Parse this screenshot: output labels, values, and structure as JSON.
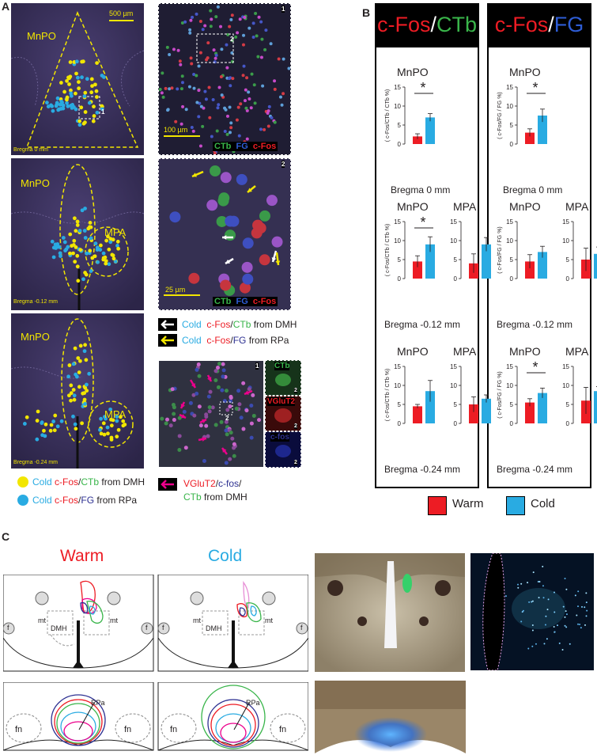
{
  "panels": {
    "a": "A",
    "b": "B",
    "c": "C"
  },
  "panel_a": {
    "scale_500": "500 µm",
    "scale_100": "100 µm",
    "scale_25": "25 µm",
    "slices": [
      {
        "region": "MnPO",
        "bregma": "Bregma 0 mm",
        "inset": "1"
      },
      {
        "region": "MnPO",
        "region2": "MPA",
        "bregma": "Bregma -0.12 mm"
      },
      {
        "region": "MnPO",
        "region2": "MPA",
        "bregma": "Bregma -0.24 mm"
      }
    ],
    "channels": {
      "ctb": "CTb",
      "fg": "FG",
      "cfos": "c-Fos",
      "vglut2": "VGluT2",
      "cfos_lower": "c-fos"
    },
    "inset_nums": {
      "one": "1",
      "two": "2"
    },
    "arrow_legend": [
      {
        "cold": "Cold",
        "a": "c-Fos",
        "slash": "/",
        "b": "CTb",
        "from": "from DMH"
      },
      {
        "cold": "Cold",
        "a": "c-Fos",
        "slash": "/",
        "b": "FG",
        "from": "from RPa"
      }
    ],
    "magenta_legend": {
      "l1a": "VGluT2",
      "l1b": "/",
      "l1c": "c-fos",
      "l1d": "/",
      "l2a": "CTb",
      "l2b": "from DMH"
    },
    "dot_legend": [
      {
        "cold": "Cold",
        "a": "c-Fos",
        "slash": "/",
        "b": "CTb",
        "from": "from DMH",
        "color": "#f2e600"
      },
      {
        "cold": "Cold",
        "a": "c-Fos",
        "slash": "/",
        "b": "FG",
        "from": "from RPa",
        "color": "#29abe2"
      }
    ]
  },
  "panel_b": {
    "header_left": {
      "a": "c-Fos",
      "slash": "/",
      "b": "CTb"
    },
    "header_right": {
      "a": "c-Fos",
      "slash": "/",
      "b": "FG"
    },
    "ylabel_ctb": "( c-Fos/CTb / CTb %)",
    "ylabel_fg": "( c-Fos/FG / FG %)",
    "legend": {
      "warm": "Warm",
      "cold": "Cold",
      "warm_color": "#ed1c24",
      "cold_color": "#29abe2"
    },
    "bregmas": [
      "Bregma 0 mm",
      "Bregma -0.12 mm",
      "Bregma -0.24 mm"
    ],
    "star": "*"
  },
  "chart_data": [
    {
      "type": "bar",
      "title": "MnPO",
      "xlabel": "Bregma 0 mm",
      "ylabel": "c-Fos/CTb / CTb %",
      "ylim": [
        0,
        15
      ],
      "categories": [
        "Warm",
        "Cold"
      ],
      "values": [
        2,
        7
      ],
      "errors": [
        0.7,
        1.0
      ],
      "significant": true
    },
    {
      "type": "bar",
      "title": "MnPO",
      "xlabel": "Bregma 0 mm",
      "ylabel": "c-Fos/FG / FG %",
      "ylim": [
        0,
        15
      ],
      "categories": [
        "Warm",
        "Cold"
      ],
      "values": [
        3,
        7.5
      ],
      "errors": [
        1.0,
        1.7
      ],
      "significant": true
    },
    {
      "type": "bar",
      "title": "MnPO",
      "xlabel": "Bregma -0.12 mm",
      "ylabel": "c-Fos/CTb / CTb %",
      "ylim": [
        0,
        15
      ],
      "categories": [
        "Warm",
        "Cold"
      ],
      "values": [
        4.5,
        9
      ],
      "errors": [
        1.5,
        2.0
      ],
      "significant": true
    },
    {
      "type": "bar",
      "title": "MPA",
      "xlabel": "Bregma -0.12 mm",
      "ylabel": "c-Fos/CTb / CTb %",
      "ylim": [
        0,
        15
      ],
      "categories": [
        "Warm",
        "Cold"
      ],
      "values": [
        4,
        9
      ],
      "errors": [
        2.5,
        1.8
      ],
      "significant": false
    },
    {
      "type": "bar",
      "title": "MnPO",
      "xlabel": "Bregma -0.12 mm",
      "ylabel": "c-Fos/FG / FG %",
      "ylim": [
        0,
        15
      ],
      "categories": [
        "Warm",
        "Cold"
      ],
      "values": [
        4.5,
        7
      ],
      "errors": [
        1.8,
        1.5
      ],
      "significant": false
    },
    {
      "type": "bar",
      "title": "MPA",
      "xlabel": "Bregma -0.12 mm",
      "ylabel": "c-Fos/FG / FG %",
      "ylim": [
        0,
        15
      ],
      "categories": [
        "Warm",
        "Cold"
      ],
      "values": [
        5,
        6.5
      ],
      "errors": [
        3.0,
        1.8
      ],
      "significant": false
    },
    {
      "type": "bar",
      "title": "MnPO",
      "xlabel": "Bregma -0.24 mm",
      "ylabel": "c-Fos/CTb / CTb %",
      "ylim": [
        0,
        15
      ],
      "categories": [
        "Warm",
        "Cold"
      ],
      "values": [
        4.5,
        8.5
      ],
      "errors": [
        0.5,
        2.8
      ],
      "significant": false
    },
    {
      "type": "bar",
      "title": "MPA",
      "xlabel": "Bregma -0.24 mm",
      "ylabel": "c-Fos/CTb / CTb %",
      "ylim": [
        0,
        15
      ],
      "categories": [
        "Warm",
        "Cold"
      ],
      "values": [
        5,
        6.5
      ],
      "errors": [
        2.0,
        1.0
      ],
      "significant": false
    },
    {
      "type": "bar",
      "title": "MnPO",
      "xlabel": "Bregma -0.24 mm",
      "ylabel": "c-Fos/FG / FG %",
      "ylim": [
        0,
        15
      ],
      "categories": [
        "Warm",
        "Cold"
      ],
      "values": [
        5.5,
        8
      ],
      "errors": [
        1.0,
        1.3
      ],
      "significant": true
    },
    {
      "type": "bar",
      "title": "MPA",
      "xlabel": "Bregma -0.24 mm",
      "ylabel": "c-Fos/FG / FG %",
      "ylim": [
        0,
        15
      ],
      "categories": [
        "Warm",
        "Cold"
      ],
      "values": [
        6,
        8.5
      ],
      "errors": [
        3.5,
        1.2
      ],
      "significant": false
    }
  ],
  "panel_c": {
    "warm": "Warm",
    "cold": "Cold",
    "labels": {
      "mt": "mt",
      "f": "f",
      "dmh": "DMH",
      "fn": "fn",
      "rpa": "RPa"
    },
    "warm_color": "#ed1c24",
    "cold_color": "#29abe2"
  }
}
